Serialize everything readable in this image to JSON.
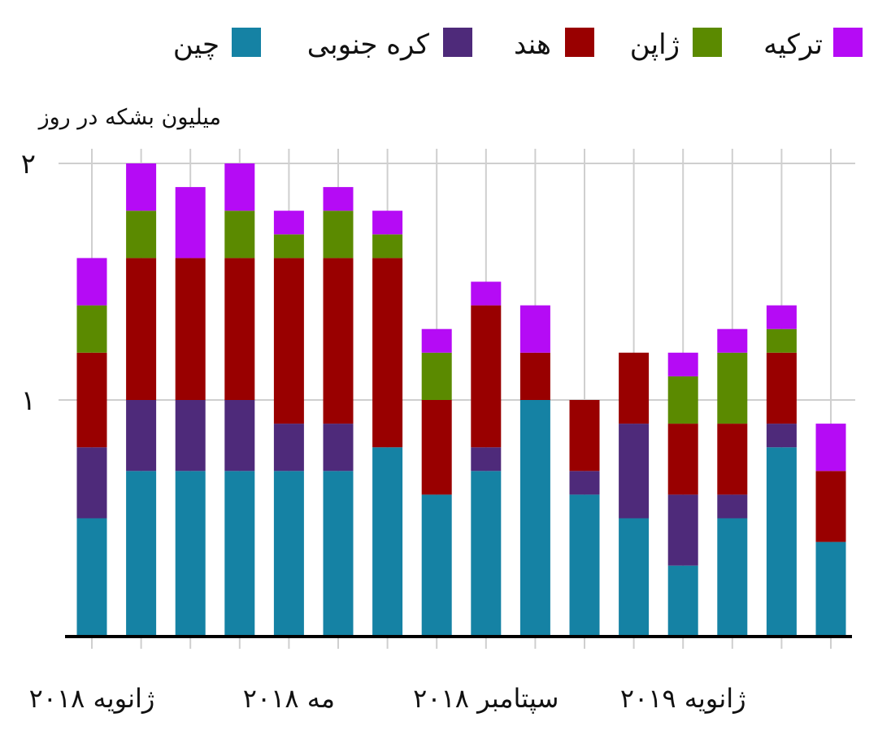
{
  "chart_data": {
    "type": "bar",
    "stacked": true,
    "ylabel": "میلیون بشکه در روز",
    "ylim": [
      0,
      2
    ],
    "yticks": [
      {
        "value": 1,
        "label": "۱"
      },
      {
        "value": 2,
        "label": "۲"
      }
    ],
    "grid": true,
    "legend_position": "top",
    "x_tick_labels": [
      {
        "index": 0,
        "label": "ژانویه ۲۰۱۸"
      },
      {
        "index": 4,
        "label": "مه ۲۰۱۸"
      },
      {
        "index": 8,
        "label": "سپتامبر ۲۰۱۸"
      },
      {
        "index": 12,
        "label": "ژانویه ۲۰۱۹"
      }
    ],
    "series": [
      {
        "name": "چین",
        "color": "#1582a4",
        "values": [
          0.5,
          0.7,
          0.7,
          0.7,
          0.7,
          0.7,
          0.8,
          0.6,
          0.7,
          1.0,
          0.6,
          0.5,
          0.3,
          0.5,
          0.8,
          0.4
        ]
      },
      {
        "name": "کره جنوبی",
        "color": "#4e2a7a",
        "values": [
          0.3,
          0.3,
          0.3,
          0.3,
          0.2,
          0.2,
          0.0,
          0.0,
          0.1,
          0.0,
          0.1,
          0.4,
          0.3,
          0.1,
          0.1,
          0.0
        ]
      },
      {
        "name": "هند",
        "color": "#990000",
        "values": [
          0.4,
          0.6,
          0.6,
          0.6,
          0.7,
          0.7,
          0.8,
          0.4,
          0.6,
          0.2,
          0.3,
          0.3,
          0.3,
          0.3,
          0.3,
          0.3
        ]
      },
      {
        "name": "ژاپن",
        "color": "#5b8a00",
        "values": [
          0.2,
          0.2,
          0.0,
          0.2,
          0.1,
          0.2,
          0.1,
          0.2,
          0.0,
          0.0,
          0.0,
          0.0,
          0.2,
          0.3,
          0.1,
          0.0
        ]
      },
      {
        "name": "ترکیه",
        "color": "#b50bf5",
        "values": [
          0.2,
          0.2,
          0.3,
          0.2,
          0.1,
          0.1,
          0.1,
          0.1,
          0.1,
          0.2,
          0.0,
          0.0,
          0.1,
          0.1,
          0.1,
          0.2
        ]
      }
    ]
  }
}
